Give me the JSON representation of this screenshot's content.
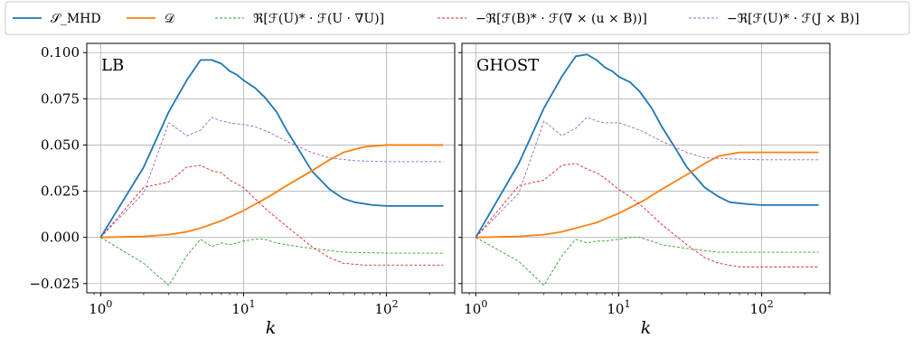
{
  "chart_data": {
    "type": "line",
    "xscale": "log",
    "xlim": [
      0.8,
      300
    ],
    "ylim": [
      -0.03,
      0.105
    ],
    "grid": true,
    "legend_position": "top",
    "xlabel": "k",
    "yticks": [
      "0.100",
      "0.075",
      "0.050",
      "0.025",
      "0.000",
      "−0.025"
    ],
    "ytick_values": [
      0.1,
      0.075,
      0.05,
      0.025,
      0.0,
      -0.025
    ],
    "xticks": [
      {
        "value": 1,
        "base": "10",
        "exp": "0"
      },
      {
        "value": 10,
        "base": "10",
        "exp": "1"
      },
      {
        "value": 100,
        "base": "10",
        "exp": "2"
      }
    ],
    "series_styles": [
      {
        "color": "#1f77b4",
        "dash": "",
        "width": 1.8
      },
      {
        "color": "#ff7f0e",
        "dash": "",
        "width": 1.8
      },
      {
        "color": "#2ca02c",
        "dash": "3,2",
        "width": 0.9
      },
      {
        "color": "#d62728",
        "dash": "3,2",
        "width": 0.9
      },
      {
        "color": "#9467bd",
        "dash": "3,2",
        "width": 0.9
      }
    ],
    "legend": [
      "𝒮_MHD",
      "𝒟",
      "ℜ[ℱ(U)* · ℱ(U · ∇U)]",
      "−ℜ[ℱ(B)* · ℱ(∇ × (u × B))]",
      "−ℜ[ℱ(U)* · ℱ(J × B)]"
    ],
    "panels": [
      {
        "title": "LB",
        "series": [
          {
            "points": [
              [
                1,
                0.0
              ],
              [
                2,
                0.038
              ],
              [
                3,
                0.068
              ],
              [
                4,
                0.085
              ],
              [
                5,
                0.096
              ],
              [
                6,
                0.096
              ],
              [
                7,
                0.094
              ],
              [
                8,
                0.09
              ],
              [
                9,
                0.088
              ],
              [
                10,
                0.085
              ],
              [
                12,
                0.081
              ],
              [
                14,
                0.076
              ],
              [
                17,
                0.068
              ],
              [
                20,
                0.058
              ],
              [
                25,
                0.046
              ],
              [
                30,
                0.036
              ],
              [
                40,
                0.026
              ],
              [
                50,
                0.021
              ],
              [
                60,
                0.019
              ],
              [
                80,
                0.0175
              ],
              [
                100,
                0.017
              ],
              [
                150,
                0.017
              ],
              [
                250,
                0.017
              ]
            ]
          },
          {
            "points": [
              [
                1,
                0.0
              ],
              [
                2,
                0.0005
              ],
              [
                3,
                0.0015
              ],
              [
                4,
                0.003
              ],
              [
                5,
                0.005
              ],
              [
                7,
                0.009
              ],
              [
                10,
                0.0145
              ],
              [
                15,
                0.022
              ],
              [
                20,
                0.028
              ],
              [
                30,
                0.036
              ],
              [
                40,
                0.042
              ],
              [
                50,
                0.046
              ],
              [
                70,
                0.049
              ],
              [
                100,
                0.05
              ],
              [
                150,
                0.05
              ],
              [
                250,
                0.05
              ]
            ]
          },
          {
            "points": [
              [
                1,
                0.0
              ],
              [
                2,
                -0.014
              ],
              [
                3,
                -0.026
              ],
              [
                4,
                -0.01
              ],
              [
                5,
                -0.001
              ],
              [
                6,
                -0.005
              ],
              [
                7,
                -0.003
              ],
              [
                8,
                -0.004
              ],
              [
                10,
                -0.002
              ],
              [
                12,
                -0.001
              ],
              [
                14,
                -0.001
              ],
              [
                17,
                -0.003
              ],
              [
                20,
                -0.004
              ],
              [
                30,
                -0.006
              ],
              [
                50,
                -0.008
              ],
              [
                100,
                -0.0085
              ],
              [
                250,
                -0.0085
              ]
            ]
          },
          {
            "points": [
              [
                1,
                0.0
              ],
              [
                2,
                0.027
              ],
              [
                3,
                0.03
              ],
              [
                4,
                0.038
              ],
              [
                5,
                0.039
              ],
              [
                6,
                0.036
              ],
              [
                7,
                0.035
              ],
              [
                8,
                0.031
              ],
              [
                10,
                0.027
              ],
              [
                12,
                0.021
              ],
              [
                15,
                0.014
              ],
              [
                20,
                0.006
              ],
              [
                30,
                -0.005
              ],
              [
                40,
                -0.011
              ],
              [
                50,
                -0.014
              ],
              [
                70,
                -0.015
              ],
              [
                100,
                -0.015
              ],
              [
                250,
                -0.015
              ]
            ]
          },
          {
            "points": [
              [
                1,
                0.0
              ],
              [
                2,
                0.024
              ],
              [
                3,
                0.062
              ],
              [
                4,
                0.055
              ],
              [
                5,
                0.058
              ],
              [
                6,
                0.065
              ],
              [
                7,
                0.063
              ],
              [
                8,
                0.062
              ],
              [
                10,
                0.061
              ],
              [
                12,
                0.06
              ],
              [
                15,
                0.057
              ],
              [
                20,
                0.052
              ],
              [
                30,
                0.046
              ],
              [
                40,
                0.043
              ],
              [
                60,
                0.0415
              ],
              [
                100,
                0.041
              ],
              [
                250,
                0.041
              ]
            ]
          }
        ]
      },
      {
        "title": "GHOST",
        "series": [
          {
            "points": [
              [
                1,
                0.0
              ],
              [
                2,
                0.04
              ],
              [
                3,
                0.07
              ],
              [
                4,
                0.087
              ],
              [
                5,
                0.098
              ],
              [
                6,
                0.099
              ],
              [
                7,
                0.096
              ],
              [
                8,
                0.092
              ],
              [
                9,
                0.09
              ],
              [
                10,
                0.087
              ],
              [
                12,
                0.084
              ],
              [
                14,
                0.079
              ],
              [
                17,
                0.07
              ],
              [
                20,
                0.06
              ],
              [
                25,
                0.048
              ],
              [
                30,
                0.038
              ],
              [
                40,
                0.027
              ],
              [
                50,
                0.022
              ],
              [
                60,
                0.019
              ],
              [
                80,
                0.018
              ],
              [
                100,
                0.0175
              ],
              [
                150,
                0.0175
              ],
              [
                250,
                0.0175
              ]
            ]
          },
          {
            "points": [
              [
                1,
                0.0
              ],
              [
                2,
                0.0005
              ],
              [
                3,
                0.0015
              ],
              [
                4,
                0.003
              ],
              [
                5,
                0.005
              ],
              [
                7,
                0.008
              ],
              [
                10,
                0.013
              ],
              [
                15,
                0.02
              ],
              [
                20,
                0.026
              ],
              [
                30,
                0.034
              ],
              [
                40,
                0.04
              ],
              [
                50,
                0.044
              ],
              [
                70,
                0.046
              ],
              [
                100,
                0.046
              ],
              [
                150,
                0.046
              ],
              [
                250,
                0.046
              ]
            ]
          },
          {
            "points": [
              [
                1,
                0.0
              ],
              [
                2,
                -0.013
              ],
              [
                3,
                -0.026
              ],
              [
                4,
                -0.01
              ],
              [
                5,
                -0.001
              ],
              [
                6,
                -0.003
              ],
              [
                7,
                -0.002
              ],
              [
                8,
                -0.002
              ],
              [
                10,
                -0.001
              ],
              [
                12,
                0.0
              ],
              [
                14,
                0.0
              ],
              [
                17,
                -0.002
              ],
              [
                20,
                -0.004
              ],
              [
                30,
                -0.006
              ],
              [
                50,
                -0.008
              ],
              [
                100,
                -0.008
              ],
              [
                250,
                -0.008
              ]
            ]
          },
          {
            "points": [
              [
                1,
                0.0
              ],
              [
                2,
                0.028
              ],
              [
                3,
                0.031
              ],
              [
                4,
                0.039
              ],
              [
                5,
                0.04
              ],
              [
                6,
                0.037
              ],
              [
                7,
                0.035
              ],
              [
                8,
                0.032
              ],
              [
                10,
                0.026
              ],
              [
                12,
                0.022
              ],
              [
                15,
                0.016
              ],
              [
                20,
                0.007
              ],
              [
                30,
                -0.004
              ],
              [
                40,
                -0.011
              ],
              [
                50,
                -0.014
              ],
              [
                70,
                -0.016
              ],
              [
                100,
                -0.016
              ],
              [
                250,
                -0.016
              ]
            ]
          },
          {
            "points": [
              [
                1,
                0.0
              ],
              [
                2,
                0.024
              ],
              [
                3,
                0.063
              ],
              [
                4,
                0.055
              ],
              [
                5,
                0.059
              ],
              [
                6,
                0.065
              ],
              [
                7,
                0.063
              ],
              [
                8,
                0.062
              ],
              [
                10,
                0.062
              ],
              [
                12,
                0.06
              ],
              [
                15,
                0.057
              ],
              [
                20,
                0.052
              ],
              [
                30,
                0.046
              ],
              [
                40,
                0.043
              ],
              [
                60,
                0.0425
              ],
              [
                100,
                0.042
              ],
              [
                250,
                0.042
              ]
            ]
          }
        ]
      }
    ]
  }
}
